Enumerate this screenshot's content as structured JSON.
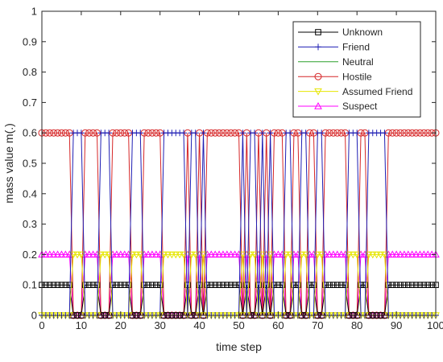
{
  "chart_data": {
    "type": "line",
    "xlabel": "time step",
    "ylabel": "mass value m(.)",
    "xlim": [
      0,
      100
    ],
    "ylim": [
      0,
      1
    ],
    "x_ticks": [
      0,
      10,
      20,
      30,
      40,
      50,
      60,
      70,
      80,
      90,
      100
    ],
    "y_ticks": [
      0,
      0.1,
      0.2,
      0.3,
      0.4,
      0.5,
      0.6,
      0.7,
      0.8,
      0.9,
      1
    ],
    "grid": false,
    "legend_location": "top-right",
    "spike_time_steps": [
      8,
      9,
      10,
      15,
      16,
      17,
      23,
      24,
      25,
      31,
      32,
      33,
      34,
      35,
      36,
      38,
      39,
      41,
      51,
      53,
      54,
      56,
      58,
      62,
      63,
      66,
      67,
      70,
      71,
      78,
      79,
      80,
      83,
      84,
      85,
      86,
      87
    ],
    "series": [
      {
        "name": "Unknown",
        "color": "#000000",
        "marker": "square",
        "baseline": 0.1,
        "spike_value": 0
      },
      {
        "name": "Friend",
        "color": "#1f1fb4",
        "marker": "plus",
        "baseline": 0,
        "spike_value": 0.6
      },
      {
        "name": "Neutral",
        "color": "#2ca02c",
        "marker": "none",
        "baseline": 0,
        "spike_value": 0
      },
      {
        "name": "Hostile",
        "color": "#d62728",
        "marker": "circle",
        "baseline": 0.6,
        "spike_value": 0
      },
      {
        "name": "Assumed Friend",
        "color": "#e6e600",
        "marker": "triangle-down",
        "baseline": 0,
        "spike_value": 0.2
      },
      {
        "name": "Suspect",
        "color": "#ff00ff",
        "marker": "triangle-up",
        "baseline": 0.2,
        "spike_value": 0
      }
    ]
  }
}
